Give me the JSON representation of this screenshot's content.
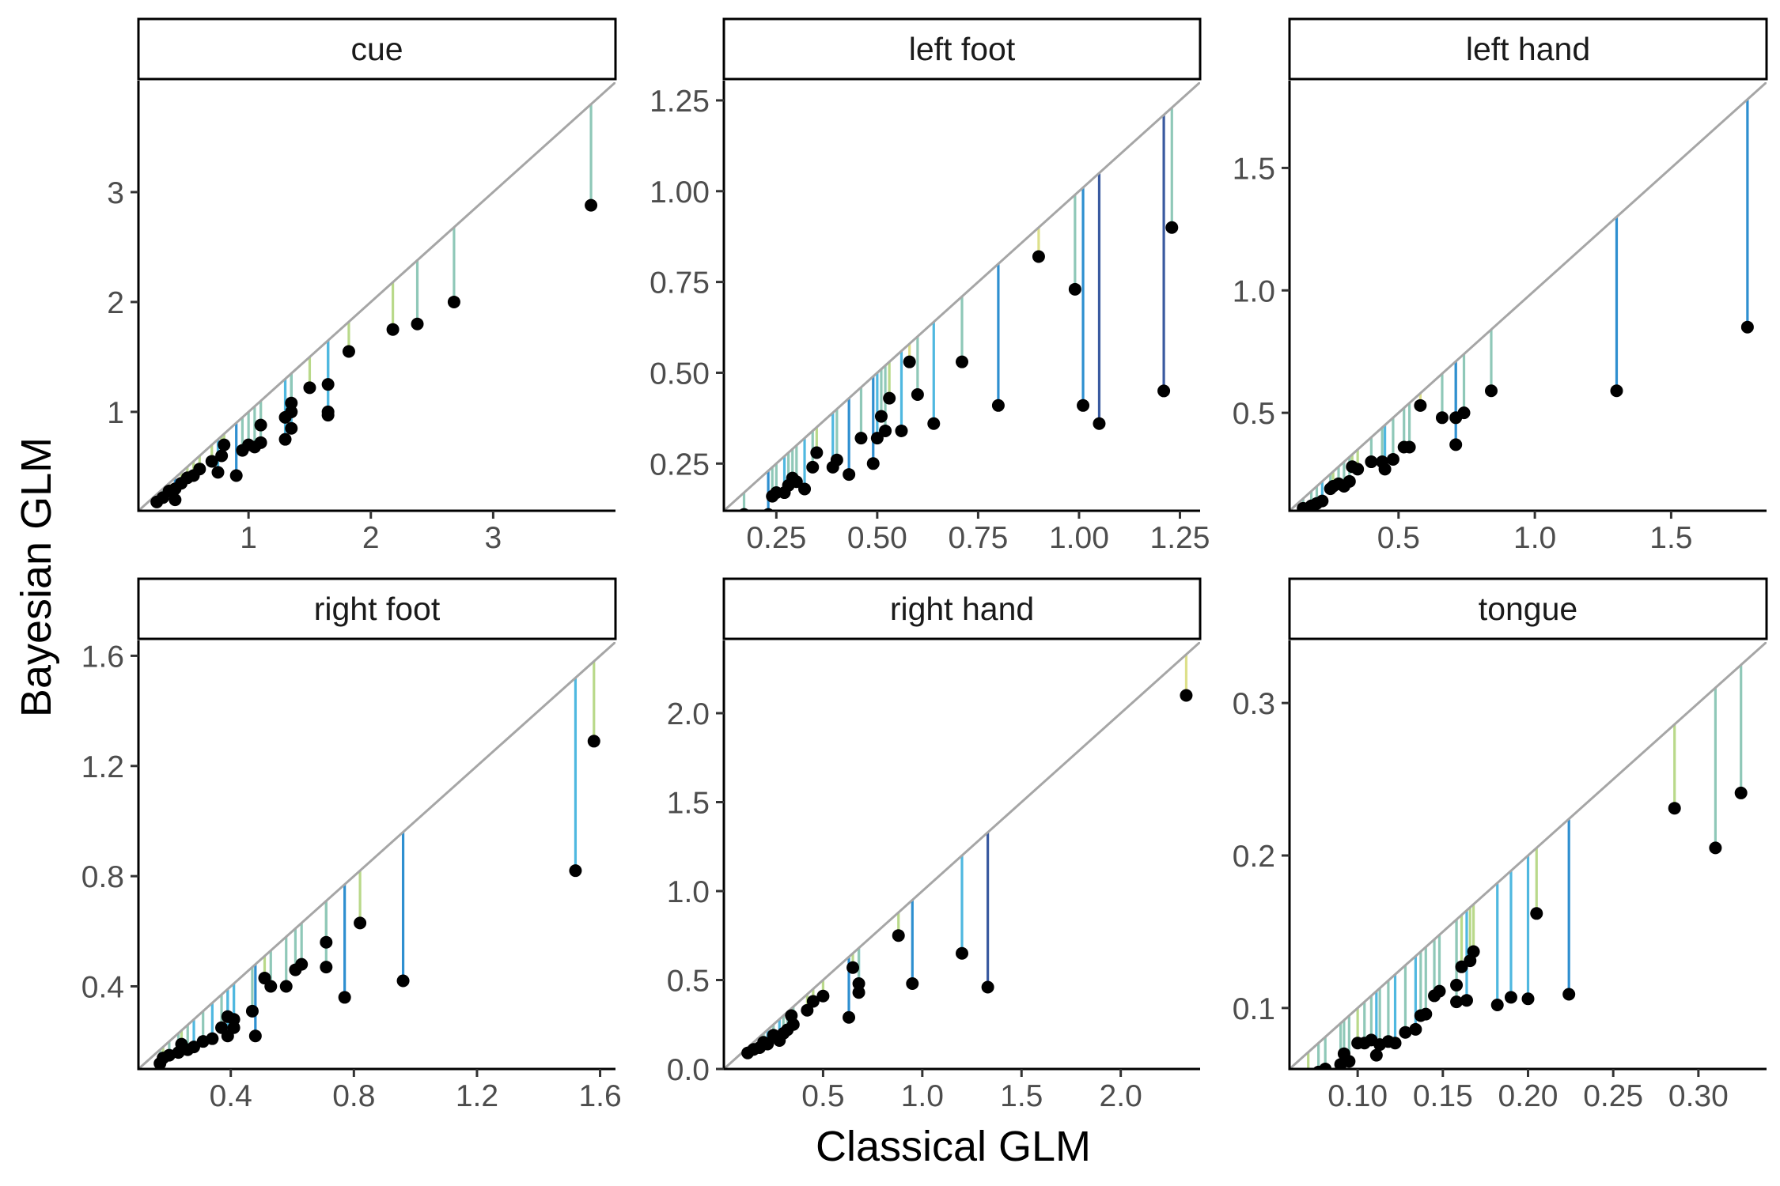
{
  "axes": {
    "xlabel": "Classical GLM",
    "ylabel": "Bayesian GLM"
  },
  "style": {
    "identity_line_color": "#a6a6a6",
    "point_color": "#000000",
    "segment_palette": [
      "#dde08a",
      "#b9d98a",
      "#8fc8b8",
      "#4fb8e0",
      "#2e8fd0",
      "#3a5aa0"
    ]
  },
  "chart_data": [
    {
      "type": "scatter",
      "panel": "cue",
      "xlim": [
        0.1,
        4.0
      ],
      "ylim": [
        0.1,
        4.0
      ],
      "xticks": [
        1,
        2,
        3
      ],
      "xtick_labels": [
        "1",
        "2",
        "3"
      ],
      "yticks": [
        1,
        2,
        3
      ],
      "ytick_labels": [
        "1",
        "2",
        "3"
      ],
      "points": [
        [
          3.8,
          2.88
        ],
        [
          2.68,
          2.0
        ],
        [
          2.38,
          1.8
        ],
        [
          2.18,
          1.75
        ],
        [
          1.82,
          1.55
        ],
        [
          1.65,
          1.25
        ],
        [
          1.65,
          1.0
        ],
        [
          1.65,
          0.97
        ],
        [
          1.5,
          1.22
        ],
        [
          1.35,
          1.08
        ],
        [
          1.35,
          0.85
        ],
        [
          1.3,
          0.95
        ],
        [
          1.3,
          0.75
        ],
        [
          1.35,
          1.0
        ],
        [
          1.1,
          0.88
        ],
        [
          1.1,
          0.72
        ],
        [
          1.05,
          0.68
        ],
        [
          1.0,
          0.7
        ],
        [
          0.95,
          0.65
        ],
        [
          0.9,
          0.42
        ],
        [
          0.8,
          0.7
        ],
        [
          0.78,
          0.6
        ],
        [
          0.75,
          0.45
        ],
        [
          0.7,
          0.55
        ],
        [
          0.6,
          0.48
        ],
        [
          0.55,
          0.42
        ],
        [
          0.5,
          0.4
        ],
        [
          0.45,
          0.35
        ],
        [
          0.4,
          0.3
        ],
        [
          0.35,
          0.28
        ],
        [
          0.3,
          0.22
        ],
        [
          0.4,
          0.2
        ],
        [
          0.25,
          0.18
        ]
      ]
    },
    {
      "type": "scatter",
      "panel": "left foot",
      "xlim": [
        0.12,
        1.3
      ],
      "ylim": [
        0.12,
        1.3
      ],
      "xticks": [
        0.25,
        0.5,
        0.75,
        1.0,
        1.25
      ],
      "xtick_labels": [
        "0.25",
        "0.50",
        "0.75",
        "1.00",
        "1.25"
      ],
      "yticks": [
        0.25,
        0.5,
        0.75,
        1.0,
        1.25
      ],
      "ytick_labels": [
        "0.25",
        "0.50",
        "0.75",
        "1.00",
        "1.25"
      ],
      "points": [
        [
          1.23,
          0.9
        ],
        [
          1.21,
          0.45
        ],
        [
          1.05,
          0.36
        ],
        [
          1.01,
          0.41
        ],
        [
          0.99,
          0.73
        ],
        [
          0.9,
          0.82
        ],
        [
          0.8,
          0.41
        ],
        [
          0.71,
          0.53
        ],
        [
          0.64,
          0.36
        ],
        [
          0.6,
          0.44
        ],
        [
          0.58,
          0.53
        ],
        [
          0.56,
          0.34
        ],
        [
          0.53,
          0.43
        ],
        [
          0.52,
          0.34
        ],
        [
          0.51,
          0.38
        ],
        [
          0.5,
          0.32
        ],
        [
          0.49,
          0.25
        ],
        [
          0.46,
          0.32
        ],
        [
          0.43,
          0.22
        ],
        [
          0.4,
          0.26
        ],
        [
          0.39,
          0.24
        ],
        [
          0.35,
          0.28
        ],
        [
          0.34,
          0.24
        ],
        [
          0.32,
          0.18
        ],
        [
          0.3,
          0.2
        ],
        [
          0.29,
          0.21
        ],
        [
          0.28,
          0.19
        ],
        [
          0.27,
          0.17
        ],
        [
          0.25,
          0.17
        ],
        [
          0.24,
          0.16
        ],
        [
          0.23,
          0.11
        ],
        [
          0.17,
          0.11
        ]
      ]
    },
    {
      "type": "scatter",
      "panel": "left hand",
      "xlim": [
        0.1,
        1.85
      ],
      "ylim": [
        0.1,
        1.85
      ],
      "xticks": [
        0.5,
        1.0,
        1.5
      ],
      "xtick_labels": [
        "0.5",
        "1.0",
        "1.5"
      ],
      "yticks": [
        0.5,
        1.0,
        1.5
      ],
      "ytick_labels": [
        "0.5",
        "1.0",
        "1.5"
      ],
      "points": [
        [
          1.78,
          0.85
        ],
        [
          1.3,
          0.59
        ],
        [
          0.84,
          0.59
        ],
        [
          0.74,
          0.5
        ],
        [
          0.71,
          0.48
        ],
        [
          0.71,
          0.37
        ],
        [
          0.66,
          0.48
        ],
        [
          0.58,
          0.53
        ],
        [
          0.54,
          0.36
        ],
        [
          0.52,
          0.36
        ],
        [
          0.48,
          0.31
        ],
        [
          0.45,
          0.27
        ],
        [
          0.44,
          0.3
        ],
        [
          0.4,
          0.3
        ],
        [
          0.35,
          0.27
        ],
        [
          0.33,
          0.28
        ],
        [
          0.32,
          0.22
        ],
        [
          0.3,
          0.2
        ],
        [
          0.28,
          0.21
        ],
        [
          0.26,
          0.2
        ],
        [
          0.25,
          0.19
        ],
        [
          0.22,
          0.14
        ],
        [
          0.2,
          0.13
        ],
        [
          0.18,
          0.12
        ],
        [
          0.15,
          0.11
        ]
      ]
    },
    {
      "type": "scatter",
      "panel": "right foot",
      "xlim": [
        0.1,
        1.65
      ],
      "ylim": [
        0.1,
        1.65
      ],
      "xticks": [
        0.4,
        0.8,
        1.2,
        1.6
      ],
      "xtick_labels": [
        "0.4",
        "0.8",
        "1.2",
        "1.6"
      ],
      "yticks": [
        0.4,
        0.8,
        1.2,
        1.6
      ],
      "ytick_labels": [
        "0.4",
        "0.8",
        "1.2",
        "1.6"
      ],
      "points": [
        [
          1.58,
          1.29
        ],
        [
          1.52,
          0.82
        ],
        [
          0.96,
          0.42
        ],
        [
          0.82,
          0.63
        ],
        [
          0.77,
          0.36
        ],
        [
          0.71,
          0.56
        ],
        [
          0.71,
          0.47
        ],
        [
          0.63,
          0.48
        ],
        [
          0.61,
          0.46
        ],
        [
          0.58,
          0.4
        ],
        [
          0.53,
          0.4
        ],
        [
          0.51,
          0.43
        ],
        [
          0.47,
          0.31
        ],
        [
          0.48,
          0.22
        ],
        [
          0.41,
          0.28
        ],
        [
          0.41,
          0.25
        ],
        [
          0.39,
          0.29
        ],
        [
          0.39,
          0.22
        ],
        [
          0.37,
          0.25
        ],
        [
          0.34,
          0.21
        ],
        [
          0.31,
          0.2
        ],
        [
          0.28,
          0.18
        ],
        [
          0.26,
          0.17
        ],
        [
          0.24,
          0.19
        ],
        [
          0.23,
          0.16
        ],
        [
          0.2,
          0.15
        ],
        [
          0.18,
          0.14
        ],
        [
          0.17,
          0.12
        ]
      ]
    },
    {
      "type": "scatter",
      "panel": "right hand",
      "xlim": [
        0.0,
        2.4
      ],
      "ylim": [
        0.0,
        2.4
      ],
      "xticks": [
        0.5,
        1.0,
        1.5,
        2.0
      ],
      "xtick_labels": [
        "0.5",
        "1.0",
        "1.5",
        "2.0"
      ],
      "yticks": [
        0.0,
        0.5,
        1.0,
        1.5,
        2.0
      ],
      "ytick_labels": [
        "0.0",
        "0.5",
        "1.0",
        "1.5",
        "2.0"
      ],
      "points": [
        [
          2.33,
          2.1
        ],
        [
          1.33,
          0.46
        ],
        [
          1.2,
          0.65
        ],
        [
          0.95,
          0.48
        ],
        [
          0.88,
          0.75
        ],
        [
          0.68,
          0.43
        ],
        [
          0.68,
          0.48
        ],
        [
          0.65,
          0.57
        ],
        [
          0.63,
          0.29
        ],
        [
          0.5,
          0.41
        ],
        [
          0.45,
          0.38
        ],
        [
          0.42,
          0.33
        ],
        [
          0.35,
          0.25
        ],
        [
          0.34,
          0.3
        ],
        [
          0.32,
          0.22
        ],
        [
          0.3,
          0.2
        ],
        [
          0.28,
          0.16
        ],
        [
          0.25,
          0.19
        ],
        [
          0.22,
          0.14
        ],
        [
          0.2,
          0.15
        ],
        [
          0.18,
          0.12
        ],
        [
          0.15,
          0.11
        ],
        [
          0.12,
          0.09
        ]
      ]
    },
    {
      "type": "scatter",
      "panel": "tongue",
      "xlim": [
        0.06,
        0.34
      ],
      "ylim": [
        0.06,
        0.34
      ],
      "xticks": [
        0.1,
        0.15,
        0.2,
        0.25,
        0.3
      ],
      "xtick_labels": [
        "0.10",
        "0.15",
        "0.20",
        "0.25",
        "0.30"
      ],
      "yticks": [
        0.1,
        0.2,
        0.3
      ],
      "ytick_labels": [
        "0.1",
        "0.2",
        "0.3"
      ],
      "points": [
        [
          0.325,
          0.241
        ],
        [
          0.31,
          0.205
        ],
        [
          0.286,
          0.231
        ],
        [
          0.224,
          0.109
        ],
        [
          0.205,
          0.162
        ],
        [
          0.2,
          0.106
        ],
        [
          0.19,
          0.107
        ],
        [
          0.182,
          0.102
        ],
        [
          0.168,
          0.137
        ],
        [
          0.166,
          0.131
        ],
        [
          0.164,
          0.105
        ],
        [
          0.161,
          0.127
        ],
        [
          0.158,
          0.115
        ],
        [
          0.158,
          0.104
        ],
        [
          0.148,
          0.111
        ],
        [
          0.145,
          0.108
        ],
        [
          0.14,
          0.096
        ],
        [
          0.137,
          0.095
        ],
        [
          0.134,
          0.086
        ],
        [
          0.128,
          0.084
        ],
        [
          0.122,
          0.077
        ],
        [
          0.118,
          0.078
        ],
        [
          0.113,
          0.076
        ],
        [
          0.111,
          0.069
        ],
        [
          0.108,
          0.079
        ],
        [
          0.104,
          0.077
        ],
        [
          0.1,
          0.077
        ],
        [
          0.095,
          0.065
        ],
        [
          0.092,
          0.07
        ],
        [
          0.09,
          0.063
        ],
        [
          0.081,
          0.06
        ],
        [
          0.077,
          0.058
        ],
        [
          0.071,
          0.056
        ]
      ]
    }
  ]
}
